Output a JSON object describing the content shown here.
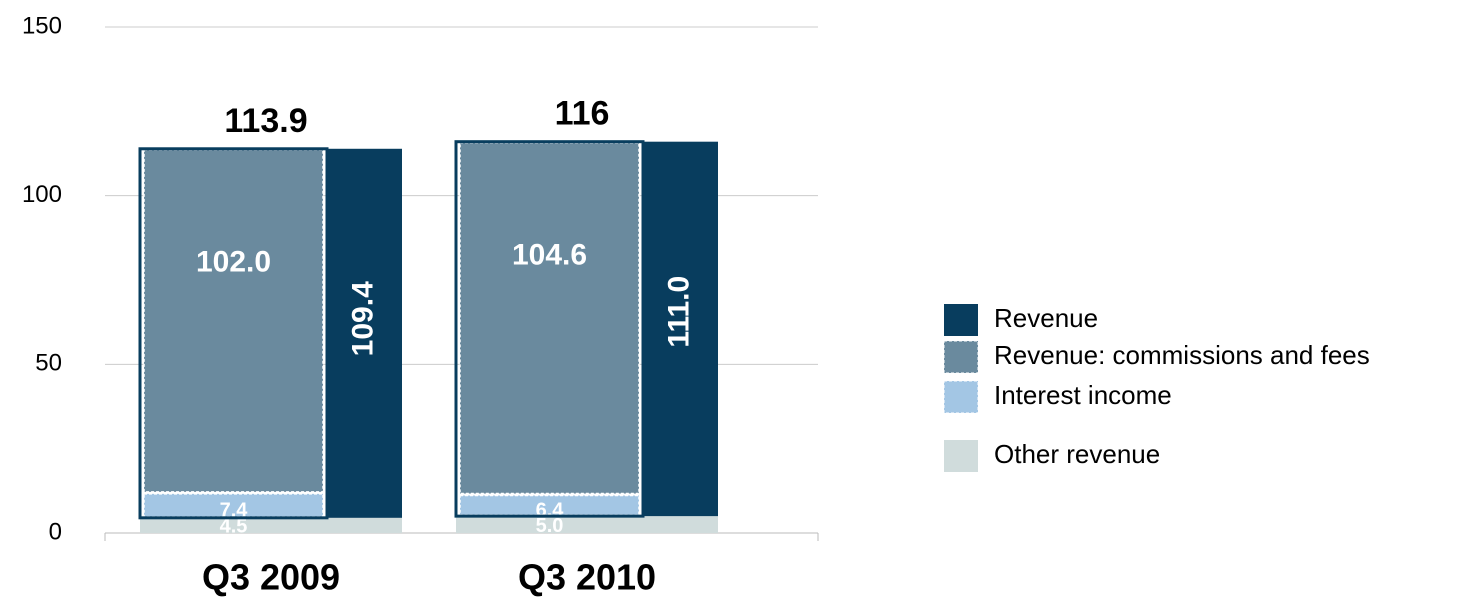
{
  "chart_data": {
    "type": "bar",
    "categories": [
      "Q3 2009",
      "Q3 2010"
    ],
    "series": [
      {
        "name": "Other revenue",
        "color": "#d0dcdc",
        "values": [
          4.5,
          5.0
        ],
        "value_labels": [
          "4.5",
          "5.0"
        ]
      },
      {
        "name": "Interest income",
        "color": "#a3c6e4",
        "values": [
          7.4,
          6.4
        ],
        "value_labels": [
          "7.4",
          "6.4"
        ]
      },
      {
        "name": "Revenue: commissions and fees",
        "color": "#6a8a9e",
        "values": [
          102.0,
          104.6
        ],
        "value_labels": [
          "102.0",
          "104.6"
        ]
      },
      {
        "name": "Revenue",
        "color": "#083d5e",
        "values": [
          109.4,
          111.0
        ],
        "value_labels": [
          "109.4",
          "111.0"
        ]
      }
    ],
    "totals": [
      113.9,
      116.0
    ],
    "ylim": [
      0,
      150
    ],
    "yticks": [
      0,
      50,
      100,
      150
    ],
    "grid": true,
    "legend": "right"
  }
}
